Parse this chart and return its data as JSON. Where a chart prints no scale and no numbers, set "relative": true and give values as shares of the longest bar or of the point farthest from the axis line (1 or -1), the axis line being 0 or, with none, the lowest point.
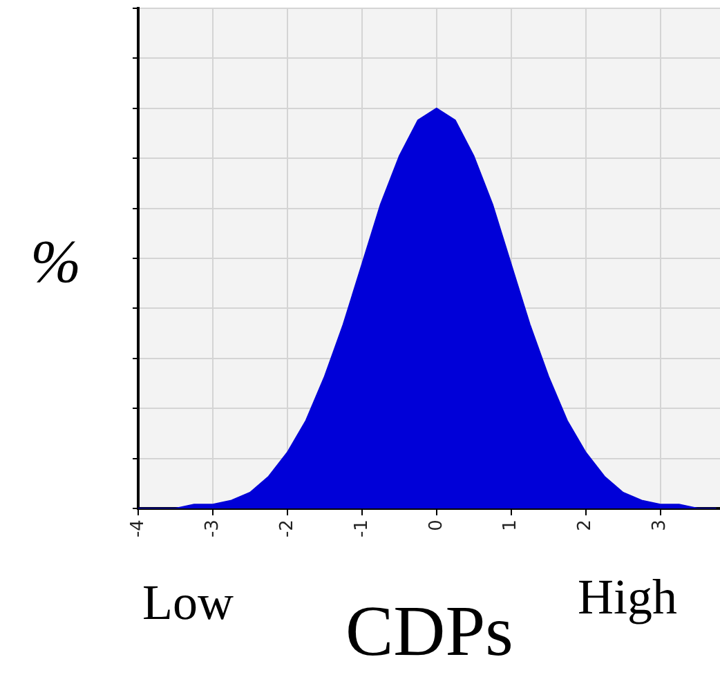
{
  "chart_data": {
    "type": "area",
    "xlabel": "CDPs",
    "ylabel": "%",
    "annotations": [
      "Low",
      "High"
    ],
    "relative": true,
    "grid": true,
    "legend": false,
    "marker": "none",
    "xlim": [
      -4,
      3.8
    ],
    "xticks": [
      -4,
      -3,
      -2,
      -1,
      0,
      1,
      2,
      3
    ],
    "series": [
      {
        "color": "#0000d8",
        "x": [
          -4,
          -3.75,
          -3.5,
          -3.25,
          -3,
          -2.75,
          -2.5,
          -2.25,
          -2,
          -1.75,
          -1.5,
          -1.25,
          -1,
          -0.75,
          -0.5,
          -0.25,
          0,
          0.25,
          0.5,
          0.75,
          1,
          1.25,
          1.5,
          1.75,
          2,
          2.25,
          2.5,
          2.75,
          3,
          3.25,
          3.5,
          3.75
        ],
        "values": [
          0,
          0,
          0,
          0.01,
          0.01,
          0.02,
          0.04,
          0.08,
          0.14,
          0.22,
          0.33,
          0.46,
          0.61,
          0.76,
          0.88,
          0.97,
          1,
          0.97,
          0.88,
          0.76,
          0.61,
          0.46,
          0.33,
          0.22,
          0.14,
          0.08,
          0.04,
          0.02,
          0.01,
          0.01,
          0,
          0
        ]
      }
    ]
  }
}
